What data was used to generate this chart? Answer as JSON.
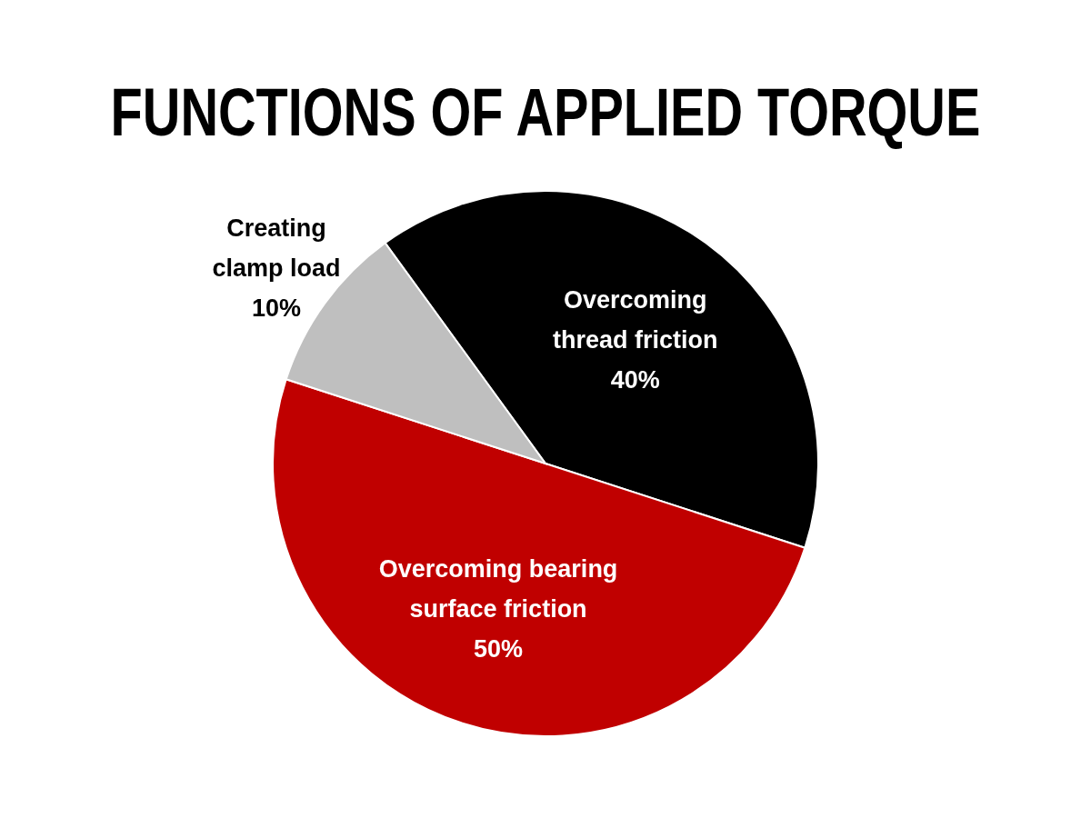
{
  "chart_data": {
    "type": "pie",
    "title": "FUNCTIONS OF APPLIED TORQUE",
    "categories": [
      "Overcoming thread friction",
      "Overcoming bearing surface friction",
      "Creating clamp load"
    ],
    "values": [
      40,
      50,
      10
    ],
    "colors": [
      "#000000",
      "#c00000",
      "#bfbfbf"
    ],
    "value_labels": [
      "40%",
      "50%",
      "10%"
    ]
  }
}
